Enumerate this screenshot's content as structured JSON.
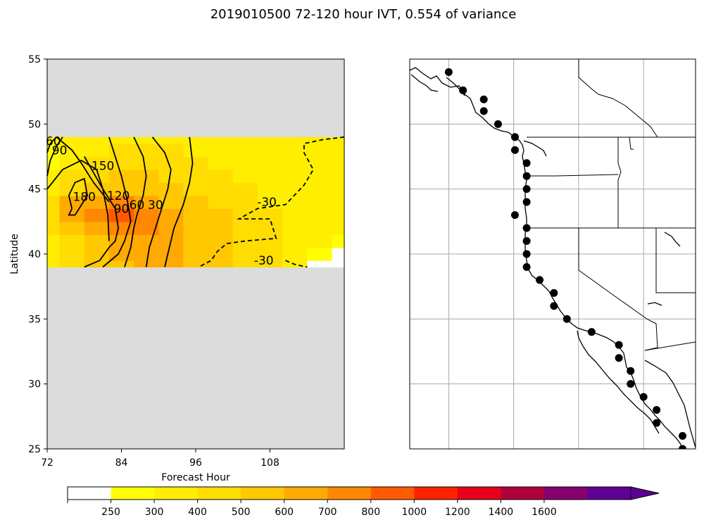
{
  "figure": {
    "title": "2019010500 72-120 hour IVT, 0.554 of variance"
  },
  "chart_data": [
    {
      "type": "heatmap",
      "panel": "left",
      "title": "",
      "xlabel": "Forecast Hour",
      "ylabel": "Latitude",
      "xlim": [
        72,
        120
      ],
      "ylim": [
        25,
        55
      ],
      "x_ticks": [
        72,
        84,
        96,
        108
      ],
      "y_ticks": [
        25,
        30,
        35,
        40,
        45,
        50,
        55
      ],
      "missing_color": "#dcdcdc",
      "data_lat_range": [
        39,
        49
      ],
      "x": [
        72,
        76,
        80,
        84,
        88,
        92,
        96,
        100,
        104,
        108,
        112,
        116,
        120
      ],
      "y": [
        39,
        40,
        41,
        42,
        43,
        44,
        45,
        46,
        47,
        48,
        49
      ],
      "z": [
        [
          300,
          400,
          500,
          500,
          600,
          600,
          500,
          500,
          400,
          400,
          300,
          200,
          200
        ],
        [
          300,
          400,
          500,
          600,
          600,
          600,
          500,
          500,
          400,
          400,
          300,
          250,
          200
        ],
        [
          350,
          450,
          550,
          600,
          650,
          600,
          550,
          500,
          450,
          400,
          350,
          300,
          250
        ],
        [
          400,
          550,
          650,
          700,
          700,
          650,
          550,
          500,
          450,
          400,
          350,
          300,
          300
        ],
        [
          450,
          650,
          750,
          800,
          750,
          650,
          550,
          500,
          450,
          400,
          350,
          300,
          300
        ],
        [
          400,
          600,
          650,
          700,
          650,
          550,
          500,
          450,
          400,
          350,
          300,
          300,
          300
        ],
        [
          350,
          450,
          550,
          550,
          550,
          500,
          450,
          400,
          400,
          350,
          300,
          300,
          300
        ],
        [
          300,
          400,
          450,
          500,
          500,
          450,
          400,
          400,
          350,
          350,
          300,
          300,
          300
        ],
        [
          250,
          350,
          400,
          450,
          450,
          400,
          400,
          350,
          350,
          300,
          300,
          300,
          300
        ],
        [
          250,
          300,
          350,
          400,
          400,
          400,
          350,
          350,
          300,
          300,
          300,
          300,
          300
        ],
        [
          250,
          300,
          350,
          350,
          350,
          350,
          300,
          300,
          300,
          300,
          300,
          300,
          300
        ]
      ],
      "contours": [
        {
          "label": "180",
          "x": [
            76.0,
            75.5,
            76.5,
            78.0,
            78.5,
            76.5,
            75.5,
            76.0
          ],
          "y": [
            43.5,
            44.5,
            45.5,
            45.8,
            44.5,
            43.0,
            43.0,
            43.5
          ],
          "dashed": false
        },
        {
          "label": "150",
          "x": [
            72.0,
            74.5,
            77.5,
            80.0,
            81.0,
            81.8,
            82.0
          ],
          "y": [
            45.0,
            46.5,
            47.2,
            46.5,
            45.0,
            43.0,
            41.0
          ],
          "dashed": false
        },
        {
          "label": "120",
          "x": [
            78.0,
            81.0,
            83.0,
            83.5,
            83.0,
            82.0,
            80.5,
            78.0
          ],
          "y": [
            47.5,
            45.0,
            43.5,
            42.0,
            41.0,
            40.5,
            39.5,
            39.0
          ],
          "dashed": false
        },
        {
          "label": "90",
          "x": [
            73.5,
            76.0,
            77.5,
            79.5,
            82.0
          ],
          "y": [
            49.0,
            48.0,
            47.0,
            45.5,
            44.0
          ],
          "dashed": false
        },
        {
          "label": "90",
          "x": [
            82.0,
            83.0,
            84.0,
            85.0,
            85.5,
            84.5,
            83.5,
            81.0
          ],
          "y": [
            49.0,
            47.5,
            46.0,
            44.0,
            42.5,
            41.0,
            40.0,
            39.0
          ],
          "dashed": false
        },
        {
          "label": "60",
          "x": [
            86.0,
            87.5,
            88.0,
            87.5,
            86.5,
            86.0,
            85.5,
            84.5
          ],
          "y": [
            49.0,
            47.5,
            46.0,
            44.5,
            43.0,
            42.0,
            40.5,
            39.0
          ],
          "dashed": false
        },
        {
          "label": "30",
          "x": [
            89.0,
            91.0,
            92.0,
            91.5,
            90.5,
            89.5,
            88.5,
            88.0
          ],
          "y": [
            49.0,
            47.8,
            46.5,
            45.0,
            43.5,
            42.0,
            40.5,
            39.0
          ],
          "dashed": false
        },
        {
          "label": "0",
          "x": [
            95.0,
            95.5,
            95.0,
            94.0,
            92.5,
            91.0
          ],
          "y": [
            49.0,
            47.0,
            45.5,
            43.8,
            42.0,
            39.0
          ],
          "dashed": false
        },
        {
          "label": "30",
          "x": [
            72.0,
            72.5,
            73.5,
            74.5
          ],
          "y": [
            46.0,
            47.2,
            48.3,
            49.0
          ],
          "dashed": false
        },
        {
          "label": "60",
          "x": [
            72.0,
            72.5,
            73.5
          ],
          "y": [
            47.8,
            48.5,
            49.0
          ],
          "dashed": false
        },
        {
          "label": "-30",
          "x": [
            120.0,
            116.5,
            113.5,
            113.5,
            115.0,
            113.5,
            110.5,
            106.0,
            103.0,
            108.0,
            109.0,
            104.0,
            101.0,
            99.5,
            98.5,
            96.5
          ],
          "y": [
            49.0,
            48.8,
            48.5,
            47.8,
            46.5,
            45.3,
            43.8,
            43.5,
            42.7,
            42.7,
            41.2,
            41.0,
            40.8,
            40.2,
            39.5,
            39.0
          ],
          "dashed": true
        },
        {
          "label": "-30",
          "x": [
            110.5,
            112.0,
            114.0
          ],
          "y": [
            39.5,
            39.2,
            39.0
          ],
          "dashed": true
        }
      ],
      "contour_labels": [
        {
          "text": "180",
          "x": 78.0,
          "y": 44.4
        },
        {
          "text": "150",
          "x": 81.0,
          "y": 46.8
        },
        {
          "text": "120",
          "x": 83.5,
          "y": 44.5
        },
        {
          "text": "90",
          "x": 84.0,
          "y": 43.5
        },
        {
          "text": "60",
          "x": 86.5,
          "y": 43.8
        },
        {
          "text": "30",
          "x": 89.5,
          "y": 43.8
        },
        {
          "text": "90",
          "x": 74.0,
          "y": 48.0
        },
        {
          "text": "60",
          "x": 73.0,
          "y": 48.7
        },
        {
          "text": "-30",
          "x": 107.5,
          "y": 44.0
        },
        {
          "text": "-30",
          "x": 107.0,
          "y": 39.5
        }
      ]
    },
    {
      "type": "scatter",
      "panel": "right",
      "title": "",
      "lon_range": [
        -137,
        -115
      ],
      "lat_range": [
        25,
        55
      ],
      "gridlines_lon": [
        -134,
        -129,
        -124,
        -119
      ],
      "gridlines_lat": [
        30,
        35,
        40,
        45,
        50
      ],
      "points": [
        [
          -134.0,
          54.0
        ],
        [
          -132.9,
          52.6
        ],
        [
          -131.3,
          51.9
        ],
        [
          -131.3,
          51.0
        ],
        [
          -130.2,
          50.0
        ],
        [
          -128.9,
          49.0
        ],
        [
          -128.9,
          48.0
        ],
        [
          -128.0,
          47.0
        ],
        [
          -128.0,
          46.0
        ],
        [
          -128.0,
          45.0
        ],
        [
          -128.0,
          44.0
        ],
        [
          -128.9,
          43.0
        ],
        [
          -128.0,
          42.0
        ],
        [
          -128.0,
          41.0
        ],
        [
          -128.0,
          40.0
        ],
        [
          -128.0,
          39.0
        ],
        [
          -127.0,
          38.0
        ],
        [
          -125.9,
          37.0
        ],
        [
          -125.9,
          36.0
        ],
        [
          -124.9,
          35.0
        ],
        [
          -123.0,
          34.0
        ],
        [
          -120.9,
          33.0
        ],
        [
          -120.9,
          32.0
        ],
        [
          -120.0,
          31.0
        ],
        [
          -120.0,
          30.0
        ],
        [
          -119.0,
          29.0
        ],
        [
          -118.0,
          28.0
        ],
        [
          -118.0,
          27.0
        ],
        [
          -116.0,
          26.0
        ],
        [
          -116.0,
          25.0
        ]
      ],
      "point_color": "#000000"
    }
  ],
  "colorbar": {
    "tick_labels": [
      "250",
      "300",
      "400",
      "500",
      "600",
      "700",
      "800",
      "1000",
      "1200",
      "1400",
      "1600"
    ],
    "colors": [
      "#ffffff",
      "#ffff00",
      "#ffee00",
      "#ffdd00",
      "#ffc800",
      "#ffaa00",
      "#ff8800",
      "#ff5a00",
      "#ff2200",
      "#e8001a",
      "#b0003c",
      "#86006e",
      "#5e0096"
    ],
    "extend": "max"
  }
}
